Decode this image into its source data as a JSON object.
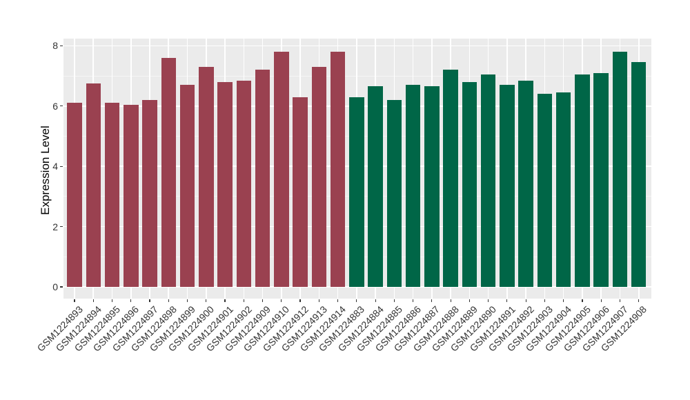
{
  "chart_data": {
    "type": "bar",
    "title": "",
    "xlabel": "",
    "ylabel": "Expression Level",
    "ylim": [
      -0.4,
      8.25
    ],
    "yticks": [
      0,
      2,
      4,
      6,
      8
    ],
    "legend": "none",
    "grid": {
      "major_horizontal": [
        0,
        2,
        4,
        6,
        8
      ],
      "minor_horizontal": [
        1,
        3,
        5,
        7
      ],
      "vertical": "one white gridline per category center",
      "color": "#ffffff",
      "panel_background": "#ebebeb"
    },
    "axis_text_color": "#333333",
    "categories": [
      "GSM1224893",
      "GSM1224894",
      "GSM1224895",
      "GSM1224896",
      "GSM1224897",
      "GSM1224898",
      "GSM1224899",
      "GSM1224900",
      "GSM1224901",
      "GSM1224902",
      "GSM1224909",
      "GSM1224910",
      "GSM1224912",
      "GSM1224913",
      "GSM1224914",
      "GSM1224883",
      "GSM1224884",
      "GSM1224885",
      "GSM1224886",
      "GSM1224887",
      "GSM1224888",
      "GSM1224889",
      "GSM1224890",
      "GSM1224891",
      "GSM1224892",
      "GSM1224903",
      "GSM1224904",
      "GSM1224905",
      "GSM1224906",
      "GSM1224907",
      "GSM1224908"
    ],
    "values": [
      6.1,
      6.75,
      6.1,
      6.05,
      6.2,
      7.6,
      6.7,
      7.3,
      6.8,
      6.85,
      7.2,
      7.8,
      6.3,
      7.3,
      7.8,
      6.3,
      6.65,
      6.2,
      6.7,
      6.65,
      7.2,
      6.8,
      7.05,
      6.7,
      6.85,
      6.4,
      6.45,
      7.05,
      7.1,
      7.8,
      7.45
    ],
    "bar_groups": [
      "maroon",
      "maroon",
      "maroon",
      "maroon",
      "maroon",
      "maroon",
      "maroon",
      "maroon",
      "maroon",
      "maroon",
      "maroon",
      "maroon",
      "maroon",
      "maroon",
      "maroon",
      "green",
      "green",
      "green",
      "green",
      "green",
      "green",
      "green",
      "green",
      "green",
      "green",
      "green",
      "green",
      "green",
      "green",
      "green",
      "green"
    ],
    "group_colors": {
      "maroon": "#9a4150",
      "green": "#006647"
    }
  }
}
